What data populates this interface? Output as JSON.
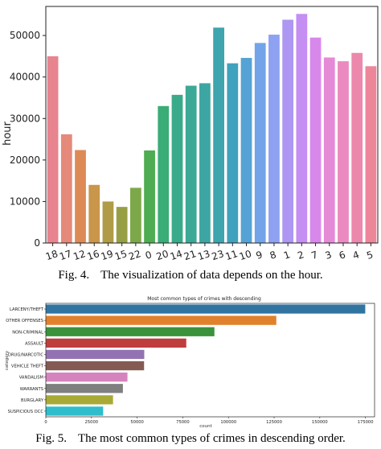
{
  "chart_data": [
    {
      "type": "bar",
      "orientation": "vertical",
      "title": "",
      "xlabel": "",
      "ylabel": "hour",
      "ylim": [
        0,
        57000
      ],
      "yticks": [
        0,
        10000,
        20000,
        30000,
        40000,
        50000
      ],
      "grid": false,
      "legend": "none",
      "categories": [
        "18",
        "17",
        "12",
        "16",
        "19",
        "15",
        "22",
        "0",
        "20",
        "14",
        "21",
        "13",
        "23",
        "11",
        "10",
        "9",
        "8",
        "1",
        "2",
        "7",
        "3",
        "6",
        "4",
        "5"
      ],
      "values": [
        45000,
        26200,
        22400,
        14000,
        10000,
        8700,
        13300,
        22300,
        33000,
        35700,
        37900,
        38500,
        51900,
        43300,
        44600,
        48200,
        50200,
        53800,
        55200,
        49500,
        44700,
        43800,
        45800,
        42600
      ],
      "colors": [
        "#e8848f",
        "#e5897a",
        "#dd8a56",
        "#c9964a",
        "#b09c46",
        "#979f45",
        "#7ca84a",
        "#4ead52",
        "#39ad75",
        "#3aab8a",
        "#3ca896",
        "#3ea6a2",
        "#3ea4ae",
        "#40a2bd",
        "#55a3d4",
        "#73a4ea",
        "#8ea1f2",
        "#ad97f2",
        "#c48ef2",
        "#d888ea",
        "#e58ad7",
        "#ea8ac0",
        "#ec88ac",
        "#ee869a"
      ],
      "caption": "Fig. 4.",
      "caption_text": "The visualization of data depends on the hour."
    },
    {
      "type": "bar",
      "orientation": "horizontal",
      "title": "Most common types of crimes with descending",
      "xlabel": "count",
      "ylabel": "category",
      "xlim": [
        0,
        180000
      ],
      "xticks": [
        0,
        25000,
        50000,
        75000,
        100000,
        125000,
        150000,
        175000
      ],
      "grid": false,
      "legend": "none",
      "categories": [
        "LARCENY/THEFT",
        "OTHER OFFENSES",
        "NON-CRIMINAL",
        "ASSAULT",
        "DRUG/NARCOTIC",
        "VEHICLE THEFT",
        "VANDALISM",
        "WARRANTS",
        "BURGLARY",
        "SUSPICIOUS OCC"
      ],
      "values": [
        174900,
        126200,
        92300,
        76900,
        53900,
        53800,
        44700,
        42200,
        36800,
        31400
      ],
      "colors": [
        "#3274a1",
        "#e1812c",
        "#3a923a",
        "#c03d3e",
        "#9372b2",
        "#845b53",
        "#d684bd",
        "#7f7f7f",
        "#a9aa35",
        "#2fbdcc"
      ],
      "caption": "Fig. 5.",
      "caption_text": "The most common types of crimes in descending order."
    }
  ]
}
